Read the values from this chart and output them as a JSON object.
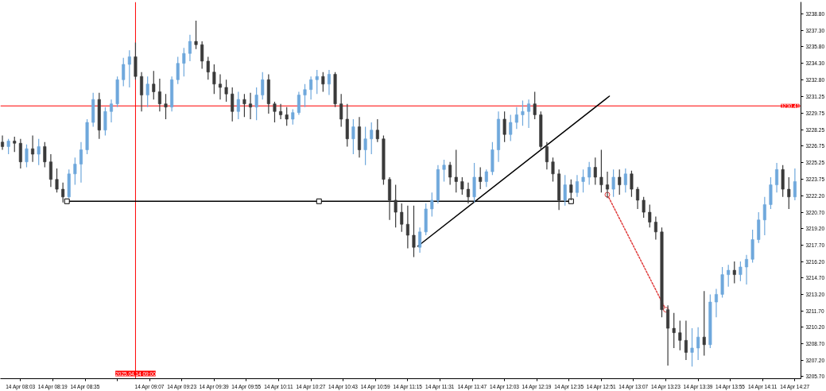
{
  "chart_data": {
    "type": "candlestick",
    "x": [
      "2025-04-14T07:54",
      "2025-04-14T07:57",
      "2025-04-14T08:00",
      "2025-04-14T08:03",
      "2025-04-14T08:06",
      "2025-04-14T08:09",
      "2025-04-14T08:12",
      "2025-04-14T08:15",
      "2025-04-14T08:18",
      "2025-04-14T08:21",
      "2025-04-14T08:24",
      "2025-04-14T08:27",
      "2025-04-14T08:30",
      "2025-04-14T08:33",
      "2025-04-14T08:36",
      "2025-04-14T08:39",
      "2025-04-14T08:42",
      "2025-04-14T08:45",
      "2025-04-14T08:48",
      "2025-04-14T08:51",
      "2025-04-14T08:54",
      "2025-04-14T08:57",
      "2025-04-14T09:00",
      "2025-04-14T09:03",
      "2025-04-14T09:06",
      "2025-04-14T09:09",
      "2025-04-14T09:12",
      "2025-04-14T09:15",
      "2025-04-14T09:18",
      "2025-04-14T09:21",
      "2025-04-14T09:24",
      "2025-04-14T09:27",
      "2025-04-14T09:30",
      "2025-04-14T09:33",
      "2025-04-14T09:36",
      "2025-04-14T09:39",
      "2025-04-14T09:42",
      "2025-04-14T09:45",
      "2025-04-14T09:48",
      "2025-04-14T09:51",
      "2025-04-14T09:54",
      "2025-04-14T09:57",
      "2025-04-14T10:00",
      "2025-04-14T10:03",
      "2025-04-14T10:06",
      "2025-04-14T10:09",
      "2025-04-14T10:12",
      "2025-04-14T10:15",
      "2025-04-14T10:18",
      "2025-04-14T10:21",
      "2025-04-14T10:24",
      "2025-04-14T10:27",
      "2025-04-14T10:30",
      "2025-04-14T10:33",
      "2025-04-14T10:36",
      "2025-04-14T10:39",
      "2025-04-14T10:42",
      "2025-04-14T10:45",
      "2025-04-14T10:48",
      "2025-04-14T10:51",
      "2025-04-14T10:54",
      "2025-04-14T10:57",
      "2025-04-14T11:00",
      "2025-04-14T11:03",
      "2025-04-14T11:06",
      "2025-04-14T11:09",
      "2025-04-14T11:12",
      "2025-04-14T11:15",
      "2025-04-14T11:18",
      "2025-04-14T11:21",
      "2025-04-14T11:24",
      "2025-04-14T11:27",
      "2025-04-14T11:30",
      "2025-04-14T11:33",
      "2025-04-14T11:36",
      "2025-04-14T11:39",
      "2025-04-14T11:42",
      "2025-04-14T11:45",
      "2025-04-14T11:48",
      "2025-04-14T11:51",
      "2025-04-14T11:54",
      "2025-04-14T11:57",
      "2025-04-14T12:00",
      "2025-04-14T12:03",
      "2025-04-14T12:06",
      "2025-04-14T12:09",
      "2025-04-14T12:12",
      "2025-04-14T12:15",
      "2025-04-14T12:18",
      "2025-04-14T12:21",
      "2025-04-14T12:24",
      "2025-04-14T12:27",
      "2025-04-14T12:30",
      "2025-04-14T12:33",
      "2025-04-14T12:36",
      "2025-04-14T12:39",
      "2025-04-14T12:42",
      "2025-04-14T12:45",
      "2025-04-14T12:48",
      "2025-04-14T12:51",
      "2025-04-14T12:54",
      "2025-04-14T12:57",
      "2025-04-14T13:00",
      "2025-04-14T13:03",
      "2025-04-14T13:06",
      "2025-04-14T13:09",
      "2025-04-14T13:12",
      "2025-04-14T13:15",
      "2025-04-14T13:18",
      "2025-04-14T13:21",
      "2025-04-14T13:24",
      "2025-04-14T13:27",
      "2025-04-14T13:30",
      "2025-04-14T13:33",
      "2025-04-14T13:36",
      "2025-04-14T13:39",
      "2025-04-14T13:42",
      "2025-04-14T13:45",
      "2025-04-14T13:48",
      "2025-04-14T13:51",
      "2025-04-14T13:54",
      "2025-04-14T13:57",
      "2025-04-14T14:00",
      "2025-04-14T14:03",
      "2025-04-14T14:06",
      "2025-04-14T14:09",
      "2025-04-14T14:12",
      "2025-04-14T14:15",
      "2025-04-14T14:18",
      "2025-04-14T14:21",
      "2025-04-14T14:24",
      "2025-04-14T14:27"
    ],
    "ohlc": [
      [
        3227.1,
        3227.7,
        3226.4,
        3226.7
      ],
      [
        3226.7,
        3227.4,
        3226.0,
        3227.2
      ],
      [
        3227.2,
        3227.6,
        3226.2,
        3227.0
      ],
      [
        3227.0,
        3227.4,
        3224.7,
        3225.3
      ],
      [
        3225.3,
        3226.9,
        3224.8,
        3226.5
      ],
      [
        3226.5,
        3227.7,
        3225.3,
        3226.0
      ],
      [
        3226.0,
        3227.4,
        3225.0,
        3226.7
      ],
      [
        3226.7,
        3227.1,
        3224.8,
        3225.3
      ],
      [
        3225.3,
        3226.0,
        3223.0,
        3223.7
      ],
      [
        3223.7,
        3224.7,
        3222.5,
        3222.8
      ],
      [
        3222.8,
        3223.4,
        3221.6,
        3222.1
      ],
      [
        3222.1,
        3224.6,
        3222.0,
        3224.2
      ],
      [
        3224.2,
        3225.7,
        3223.2,
        3225.1
      ],
      [
        3225.1,
        3227.1,
        3223.4,
        3226.4
      ],
      [
        3226.4,
        3229.2,
        3226.0,
        3228.9
      ],
      [
        3228.9,
        3231.6,
        3228.5,
        3231.0
      ],
      [
        3231.0,
        3231.6,
        3227.4,
        3228.2
      ],
      [
        3228.2,
        3230.3,
        3227.7,
        3229.9
      ],
      [
        3229.9,
        3231.0,
        3228.9,
        3230.6
      ],
      [
        3230.6,
        3233.1,
        3230.3,
        3232.8
      ],
      [
        3232.8,
        3234.8,
        3232.2,
        3234.2
      ],
      [
        3234.2,
        3235.5,
        3232.1,
        3234.9
      ],
      [
        3234.9,
        3236.2,
        3232.8,
        3233.1
      ],
      [
        3233.1,
        3233.5,
        3229.9,
        3231.4
      ],
      [
        3231.4,
        3233.1,
        3230.3,
        3232.4
      ],
      [
        3232.4,
        3233.6,
        3231.0,
        3231.7
      ],
      [
        3231.7,
        3232.9,
        3229.9,
        3230.6
      ],
      [
        3230.6,
        3231.5,
        3229.2,
        3230.3
      ],
      [
        3230.3,
        3233.1,
        3229.9,
        3232.8
      ],
      [
        3232.8,
        3234.9,
        3232.4,
        3234.3
      ],
      [
        3234.3,
        3235.7,
        3233.1,
        3235.2
      ],
      [
        3235.2,
        3236.9,
        3234.5,
        3236.3
      ],
      [
        3236.3,
        3238.2,
        3235.6,
        3236.0
      ],
      [
        3236.0,
        3236.3,
        3233.8,
        3234.5
      ],
      [
        3234.5,
        3234.9,
        3232.8,
        3233.5
      ],
      [
        3233.5,
        3234.2,
        3231.5,
        3232.4
      ],
      [
        3232.4,
        3233.3,
        3231.0,
        3232.1
      ],
      [
        3232.1,
        3232.8,
        3230.8,
        3231.5
      ],
      [
        3231.5,
        3232.1,
        3229.0,
        3229.9
      ],
      [
        3229.9,
        3231.7,
        3229.2,
        3231.0
      ],
      [
        3231.0,
        3231.5,
        3229.4,
        3230.6
      ],
      [
        3230.6,
        3231.6,
        3229.2,
        3230.3
      ],
      [
        3230.3,
        3232.1,
        3229.1,
        3231.4
      ],
      [
        3231.4,
        3233.5,
        3231.0,
        3232.8
      ],
      [
        3232.8,
        3233.3,
        3229.7,
        3230.6
      ],
      [
        3230.6,
        3230.8,
        3228.9,
        3229.9
      ],
      [
        3229.9,
        3230.6,
        3229.2,
        3229.6
      ],
      [
        3229.6,
        3230.3,
        3228.6,
        3229.2
      ],
      [
        3229.2,
        3230.1,
        3228.7,
        3229.8
      ],
      [
        3229.8,
        3231.7,
        3229.6,
        3231.4
      ],
      [
        3231.4,
        3232.4,
        3230.3,
        3231.9
      ],
      [
        3231.9,
        3233.1,
        3231.0,
        3232.8
      ],
      [
        3232.8,
        3233.7,
        3231.5,
        3233.1
      ],
      [
        3233.1,
        3233.5,
        3231.7,
        3232.4
      ],
      [
        3232.4,
        3233.7,
        3231.4,
        3233.3
      ],
      [
        3233.3,
        3233.5,
        3230.3,
        3230.6
      ],
      [
        3230.6,
        3231.5,
        3228.5,
        3229.2
      ],
      [
        3229.2,
        3230.6,
        3226.7,
        3227.4
      ],
      [
        3227.4,
        3229.2,
        3226.0,
        3228.5
      ],
      [
        3228.5,
        3229.4,
        3225.7,
        3226.4
      ],
      [
        3226.4,
        3228.5,
        3225.0,
        3227.4
      ],
      [
        3227.4,
        3228.9,
        3226.0,
        3228.2
      ],
      [
        3228.2,
        3229.2,
        3227.1,
        3227.4
      ],
      [
        3227.4,
        3227.7,
        3223.2,
        3223.7
      ],
      [
        3223.7,
        3223.9,
        3220.0,
        3221.8
      ],
      [
        3221.8,
        3223.2,
        3219.3,
        3220.7
      ],
      [
        3220.7,
        3221.5,
        3218.9,
        3219.6
      ],
      [
        3219.6,
        3221.3,
        3217.4,
        3218.6
      ],
      [
        3218.6,
        3221.3,
        3216.6,
        3217.5
      ],
      [
        3217.5,
        3219.3,
        3217.0,
        3218.9
      ],
      [
        3218.9,
        3221.5,
        3218.6,
        3221.0
      ],
      [
        3221.0,
        3222.5,
        3220.3,
        3221.8
      ],
      [
        3221.8,
        3225.0,
        3221.5,
        3224.6
      ],
      [
        3224.6,
        3225.5,
        3223.5,
        3225.0
      ],
      [
        3225.0,
        3225.3,
        3223.2,
        3223.9
      ],
      [
        3223.9,
        3226.4,
        3222.5,
        3223.5
      ],
      [
        3223.5,
        3223.9,
        3222.3,
        3222.8
      ],
      [
        3222.8,
        3223.4,
        3221.5,
        3222.1
      ],
      [
        3222.1,
        3225.2,
        3221.6,
        3223.9
      ],
      [
        3223.9,
        3224.8,
        3222.8,
        3223.5
      ],
      [
        3223.5,
        3224.6,
        3223.0,
        3224.4
      ],
      [
        3224.4,
        3227.1,
        3224.1,
        3226.4
      ],
      [
        3226.4,
        3229.9,
        3225.3,
        3229.2
      ],
      [
        3229.2,
        3229.9,
        3227.1,
        3227.8
      ],
      [
        3227.8,
        3229.6,
        3227.2,
        3228.9
      ],
      [
        3228.9,
        3230.3,
        3228.3,
        3229.6
      ],
      [
        3229.6,
        3230.9,
        3228.6,
        3229.9
      ],
      [
        3229.9,
        3231.0,
        3228.4,
        3230.6
      ],
      [
        3230.6,
        3231.7,
        3229.2,
        3229.6
      ],
      [
        3229.6,
        3229.9,
        3226.4,
        3226.7
      ],
      [
        3226.7,
        3227.1,
        3224.6,
        3225.3
      ],
      [
        3225.3,
        3225.7,
        3223.5,
        3224.2
      ],
      [
        3224.2,
        3224.6,
        3220.9,
        3221.8
      ],
      [
        3221.8,
        3224.1,
        3221.3,
        3223.2
      ],
      [
        3223.2,
        3223.7,
        3221.8,
        3222.5
      ],
      [
        3222.5,
        3224.1,
        3222.1,
        3223.5
      ],
      [
        3223.5,
        3224.6,
        3222.5,
        3223.9
      ],
      [
        3223.9,
        3225.3,
        3223.2,
        3224.8
      ],
      [
        3224.8,
        3225.7,
        3223.2,
        3223.9
      ],
      [
        3223.9,
        3226.4,
        3222.5,
        3223.2
      ],
      [
        3223.2,
        3224.4,
        3222.0,
        3222.8
      ],
      [
        3222.8,
        3224.6,
        3222.1,
        3223.9
      ],
      [
        3223.9,
        3224.6,
        3222.3,
        3223.2
      ],
      [
        3223.2,
        3224.7,
        3222.5,
        3224.2
      ],
      [
        3224.2,
        3224.5,
        3222.1,
        3222.8
      ],
      [
        3222.8,
        3223.0,
        3221.0,
        3221.8
      ],
      [
        3221.8,
        3222.1,
        3220.2,
        3220.7
      ],
      [
        3220.7,
        3221.4,
        3219.3,
        3219.8
      ],
      [
        3219.8,
        3220.3,
        3218.2,
        3218.9
      ],
      [
        3218.9,
        3219.3,
        3211.1,
        3211.8
      ],
      [
        3211.8,
        3212.2,
        3206.7,
        3210.1
      ],
      [
        3210.1,
        3211.5,
        3208.3,
        3209.7
      ],
      [
        3209.7,
        3210.8,
        3208.1,
        3209.0
      ],
      [
        3209.0,
        3210.8,
        3207.2,
        3207.9
      ],
      [
        3207.9,
        3210.1,
        3206.6,
        3208.3
      ],
      [
        3208.3,
        3210.2,
        3207.2,
        3209.3
      ],
      [
        3209.3,
        3213.5,
        3207.6,
        3208.6
      ],
      [
        3208.6,
        3213.2,
        3208.3,
        3212.5
      ],
      [
        3212.5,
        3213.7,
        3211.1,
        3213.2
      ],
      [
        3213.2,
        3215.7,
        3212.9,
        3215.0
      ],
      [
        3215.0,
        3215.9,
        3213.9,
        3215.4
      ],
      [
        3215.4,
        3216.2,
        3214.2,
        3215.0
      ],
      [
        3215.0,
        3216.2,
        3214.4,
        3215.7
      ],
      [
        3215.7,
        3216.8,
        3214.1,
        3216.4
      ],
      [
        3216.4,
        3219.1,
        3216.1,
        3218.2
      ],
      [
        3218.2,
        3220.7,
        3217.9,
        3220.0
      ],
      [
        3220.0,
        3222.1,
        3218.6,
        3221.4
      ],
      [
        3221.4,
        3223.9,
        3221.0,
        3223.2
      ],
      [
        3223.2,
        3225.2,
        3222.5,
        3224.6
      ],
      [
        3224.6,
        3225.0,
        3222.1,
        3222.8
      ],
      [
        3222.8,
        3223.9,
        3221.0,
        3222.1
      ],
      [
        3222.1,
        3224.7,
        3221.8,
        3223.5
      ]
    ],
    "colors": [
      "#3a3a3a",
      "#6fa8dc",
      "#3a3a3a",
      "#3a3a3a",
      "#6fa8dc",
      "#3a3a3a",
      "#6fa8dc",
      "#3a3a3a",
      "#3a3a3a",
      "#3a3a3a",
      "#3a3a3a",
      "#6fa8dc",
      "#6fa8dc",
      "#6fa8dc",
      "#6fa8dc",
      "#6fa8dc",
      "#3a3a3a",
      "#6fa8dc",
      "#6fa8dc",
      "#6fa8dc",
      "#6fa8dc",
      "#6fa8dc",
      "#3a3a3a",
      "#3a3a3a",
      "#6fa8dc",
      "#3a3a3a",
      "#3a3a3a",
      "#3a3a3a",
      "#6fa8dc",
      "#6fa8dc",
      "#6fa8dc",
      "#6fa8dc",
      "#3a3a3a",
      "#3a3a3a",
      "#3a3a3a",
      "#3a3a3a",
      "#3a3a3a",
      "#3a3a3a",
      "#3a3a3a",
      "#6fa8dc",
      "#3a3a3a",
      "#3a3a3a",
      "#6fa8dc",
      "#6fa8dc",
      "#3a3a3a",
      "#3a3a3a",
      "#3a3a3a",
      "#3a3a3a",
      "#6fa8dc",
      "#6fa8dc",
      "#6fa8dc",
      "#6fa8dc",
      "#6fa8dc",
      "#3a3a3a",
      "#6fa8dc",
      "#3a3a3a",
      "#3a3a3a",
      "#3a3a3a",
      "#6fa8dc",
      "#3a3a3a",
      "#6fa8dc",
      "#6fa8dc",
      "#3a3a3a",
      "#3a3a3a",
      "#3a3a3a",
      "#3a3a3a",
      "#3a3a3a",
      "#3a3a3a",
      "#3a3a3a",
      "#6fa8dc",
      "#6fa8dc",
      "#6fa8dc",
      "#6fa8dc",
      "#6fa8dc",
      "#3a3a3a",
      "#3a3a3a",
      "#3a3a3a",
      "#3a3a3a",
      "#6fa8dc",
      "#3a3a3a",
      "#6fa8dc",
      "#6fa8dc",
      "#6fa8dc",
      "#3a3a3a",
      "#6fa8dc",
      "#6fa8dc",
      "#6fa8dc",
      "#6fa8dc",
      "#3a3a3a",
      "#3a3a3a",
      "#3a3a3a",
      "#3a3a3a",
      "#3a3a3a",
      "#6fa8dc",
      "#3a3a3a",
      "#6fa8dc",
      "#6fa8dc",
      "#6fa8dc",
      "#3a3a3a",
      "#3a3a3a",
      "#3a3a3a",
      "#6fa8dc",
      "#3a3a3a",
      "#6fa8dc",
      "#3a3a3a",
      "#3a3a3a",
      "#3a3a3a",
      "#3a3a3a",
      "#3a3a3a",
      "#3a3a3a",
      "#3a3a3a",
      "#3a3a3a",
      "#3a3a3a",
      "#3a3a3a",
      "#6fa8dc",
      "#6fa8dc",
      "#3a3a3a",
      "#6fa8dc",
      "#6fa8dc",
      "#6fa8dc",
      "#6fa8dc",
      "#3a3a3a",
      "#6fa8dc",
      "#6fa8dc",
      "#6fa8dc",
      "#6fa8dc",
      "#6fa8dc",
      "#6fa8dc",
      "#6fa8dc",
      "#3a3a3a",
      "#3a3a3a",
      "#6fa8dc"
    ],
    "xlim": [
      "2025-04-14T07:53",
      "2025-04-14T14:30"
    ],
    "ylim": [
      3205.5,
      3239.9
    ],
    "xticks": [
      {
        "value": "2025-04-14T08:03",
        "label": "14 Apr 08:03"
      },
      {
        "value": "2025-04-14T08:19",
        "label": "14 Apr 08:19"
      },
      {
        "value": "2025-04-14T08:35",
        "label": "14 Apr 08:35"
      },
      {
        "value": "2025-04-14T08:51",
        "label": null
      },
      {
        "value": "2025-04-14T09:07",
        "label": "14 Apr 09:07"
      },
      {
        "value": "2025-04-14T09:23",
        "label": "14 Apr 09:23"
      },
      {
        "value": "2025-04-14T09:39",
        "label": "14 Apr 09:39"
      },
      {
        "value": "2025-04-14T09:55",
        "label": "14 Apr 09:55"
      },
      {
        "value": "2025-04-14T10:11",
        "label": "14 Apr 10:11"
      },
      {
        "value": "2025-04-14T10:27",
        "label": "14 Apr 10:27"
      },
      {
        "value": "2025-04-14T10:43",
        "label": "14 Apr 10:43"
      },
      {
        "value": "2025-04-14T10:59",
        "label": "14 Apr 10:59"
      },
      {
        "value": "2025-04-14T11:15",
        "label": "14 Apr 11:15"
      },
      {
        "value": "2025-04-14T11:31",
        "label": "14 Apr 11:31"
      },
      {
        "value": "2025-04-14T11:47",
        "label": "14 Apr 11:47"
      },
      {
        "value": "2025-04-14T12:03",
        "label": "14 Apr 12:03"
      },
      {
        "value": "2025-04-14T12:19",
        "label": "14 Apr 12:19"
      },
      {
        "value": "2025-04-14T12:35",
        "label": "14 Apr 12:35"
      },
      {
        "value": "2025-04-14T12:51",
        "label": "14 Apr 12:51"
      },
      {
        "value": "2025-04-14T13:07",
        "label": "14 Apr 13:07"
      },
      {
        "value": "2025-04-14T13:23",
        "label": "14 Apr 13:23"
      },
      {
        "value": "2025-04-14T13:39",
        "label": "14 Apr 13:39"
      },
      {
        "value": "2025-04-14T13:55",
        "label": "14 Apr 13:55"
      },
      {
        "value": "2025-04-14T14:11",
        "label": "14 Apr 14:11"
      },
      {
        "value": "2025-04-14T14:27",
        "label": "14 Apr 14:27"
      }
    ],
    "yticks": [
      {
        "value": 3238.8,
        "label": "3238.80"
      },
      {
        "value": 3237.3,
        "label": "3237.30"
      },
      {
        "value": 3235.8,
        "label": "3235.80"
      },
      {
        "value": 3234.3,
        "label": "3234.30"
      },
      {
        "value": 3232.8,
        "label": "3232.80"
      },
      3231.25,
      3229.75,
      3228.25,
      3226.75,
      3225.25,
      3223.75,
      {
        "value": 3222.2,
        "label": "3222.20"
      },
      {
        "value": 3220.7,
        "label": "3220.70"
      },
      {
        "value": 3219.2,
        "label": "3219.20"
      },
      {
        "value": 3217.7,
        "label": "3217.70"
      },
      {
        "value": 3216.2,
        "label": "3216.20"
      },
      {
        "value": 3214.7,
        "label": "3214.70"
      },
      {
        "value": 3213.2,
        "label": "3213.20"
      },
      {
        "value": 3211.7,
        "label": "3211.70"
      },
      {
        "value": 3210.2,
        "label": "3210.20"
      },
      {
        "value": 3208.7,
        "label": "3208.70"
      },
      {
        "value": 3207.2,
        "label": "3207.20"
      },
      {
        "value": 3205.7,
        "label": "3205.70"
      }
    ],
    "series": [
      {
        "type": "line",
        "color": "#000000",
        "x": [
          "2025-04-14T08:26",
          "2025-04-14T10:31",
          "2025-04-14T12:36"
        ],
        "values": [
          3221.7,
          3221.7,
          3221.7
        ],
        "marker": "square"
      },
      {
        "type": "line",
        "color": "#000000",
        "x": [
          "2025-04-14T11:20",
          "2025-04-14T12:55"
        ],
        "values": [
          3217.6,
          3231.3
        ]
      },
      {
        "type": "line",
        "color": "#e03c3c",
        "x": [
          "2025-04-14T12:54",
          "2025-04-14T13:23"
        ],
        "values": [
          3222.3,
          3211.8
        ],
        "marker": "circle",
        "line_style": "dotted"
      }
    ],
    "ref_lines": [
      {
        "axis": "y",
        "value": 3230.41,
        "label": "3230.41",
        "color": "#ff0000"
      },
      {
        "axis": "x",
        "value": "2025-04-14T09:00",
        "label": "2025.04.14 09:00",
        "color": "#ff0000"
      }
    ]
  }
}
